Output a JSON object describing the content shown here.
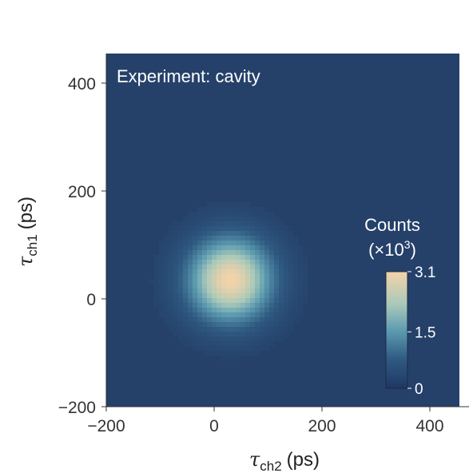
{
  "chart_data": {
    "type": "heatmap",
    "title": "Experiment: cavity",
    "xlabel": {
      "symbol": "τ",
      "sub": "ch2",
      "unit": "(ps)"
    },
    "ylabel": {
      "symbol": "τ",
      "sub": "ch1",
      "unit": "(ps)"
    },
    "xlim": [
      -200,
      450
    ],
    "ylim": [
      -200,
      450
    ],
    "x_ticks": [
      -200,
      0,
      200,
      400
    ],
    "x_tick_labels": [
      "−200",
      "0",
      "200",
      "400"
    ],
    "y_ticks": [
      -200,
      0,
      200,
      400
    ],
    "y_tick_labels": [
      "−200",
      "0",
      "200",
      "400"
    ],
    "peak": {
      "x": 30,
      "y": 35,
      "max_counts_e3": 3.1,
      "sigma_ps": 55
    },
    "colorbar": {
      "title_line1": "Counts",
      "title_line2_prefix": "(×10",
      "title_line2_exp": "3",
      "title_line2_suffix": ")",
      "min": 0,
      "max": 3.1,
      "ticks": [
        3.1,
        1.5,
        0
      ],
      "tick_labels": [
        "3.1",
        "1.5",
        "0"
      ]
    },
    "colors": {
      "background": "#25416a",
      "low": "#223b64",
      "mid": "#6aa6b6",
      "high": "#f2d2a8"
    },
    "grid": false
  }
}
